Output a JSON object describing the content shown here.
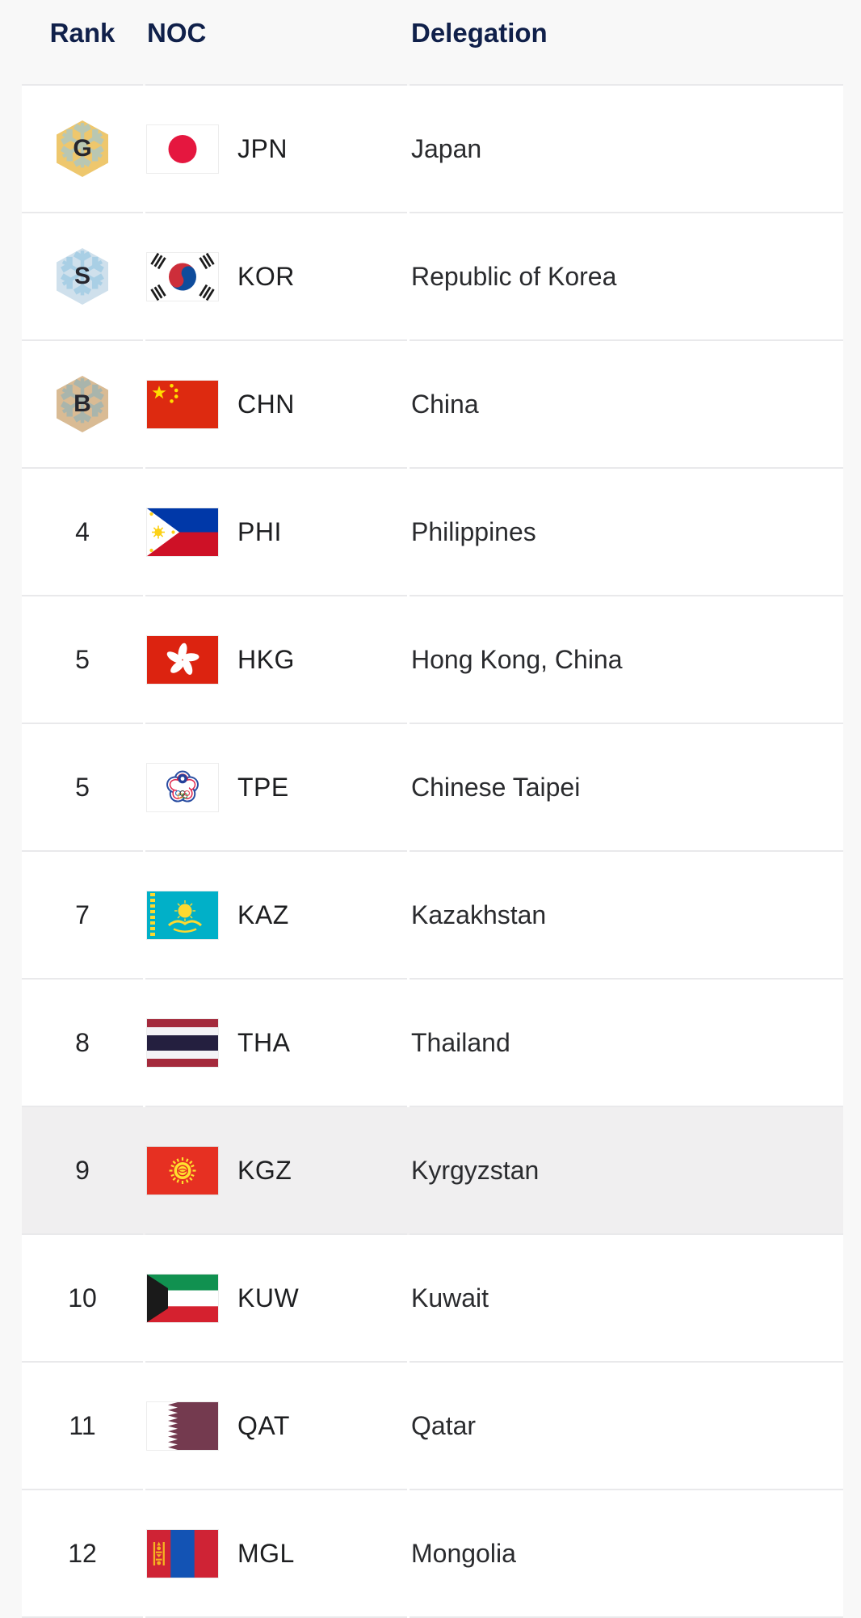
{
  "table": {
    "headers": {
      "rank": "Rank",
      "noc": "NOC",
      "delegation": "Delegation"
    },
    "rows": [
      {
        "rank": "G",
        "medal": "gold",
        "noc": "JPN",
        "delegation": "Japan",
        "flag": "japan-flag",
        "highlight": false
      },
      {
        "rank": "S",
        "medal": "silver",
        "noc": "KOR",
        "delegation": "Republic of Korea",
        "flag": "korea-flag",
        "highlight": false
      },
      {
        "rank": "B",
        "medal": "bronze",
        "noc": "CHN",
        "delegation": "China",
        "flag": "china-flag",
        "highlight": false
      },
      {
        "rank": "4",
        "medal": null,
        "noc": "PHI",
        "delegation": "Philippines",
        "flag": "philippines-flag",
        "highlight": false
      },
      {
        "rank": "5",
        "medal": null,
        "noc": "HKG",
        "delegation": "Hong Kong, China",
        "flag": "hong-kong-flag",
        "highlight": false
      },
      {
        "rank": "5",
        "medal": null,
        "noc": "TPE",
        "delegation": "Chinese Taipei",
        "flag": "chinese-taipei-flag",
        "highlight": false
      },
      {
        "rank": "7",
        "medal": null,
        "noc": "KAZ",
        "delegation": "Kazakhstan",
        "flag": "kazakhstan-flag",
        "highlight": false
      },
      {
        "rank": "8",
        "medal": null,
        "noc": "THA",
        "delegation": "Thailand",
        "flag": "thailand-flag",
        "highlight": false
      },
      {
        "rank": "9",
        "medal": null,
        "noc": "KGZ",
        "delegation": "Kyrgyzstan",
        "flag": "kyrgyzstan-flag",
        "highlight": true
      },
      {
        "rank": "10",
        "medal": null,
        "noc": "KUW",
        "delegation": "Kuwait",
        "flag": "kuwait-flag",
        "highlight": false
      },
      {
        "rank": "11",
        "medal": null,
        "noc": "QAT",
        "delegation": "Qatar",
        "flag": "qatar-flag",
        "highlight": false
      },
      {
        "rank": "12",
        "medal": null,
        "noc": "MGL",
        "delegation": "Mongolia",
        "flag": "mongolia-flag",
        "highlight": false
      }
    ]
  },
  "icons": {
    "gold_medal_letter": "G",
    "silver_medal_letter": "S",
    "bronze_medal_letter": "B",
    "snowflake_glyph": "❆"
  },
  "colors": {
    "header_text": "#10204a",
    "body_text": "#222326",
    "row_background": "#ffffff",
    "row_highlight": "#f0eff0",
    "page_background": "#f8f8f8",
    "separator": "#e9e9eb",
    "medal_gold": "#eec76d",
    "medal_silver": "#cfe0ec",
    "medal_bronze": "#d9bb94"
  }
}
